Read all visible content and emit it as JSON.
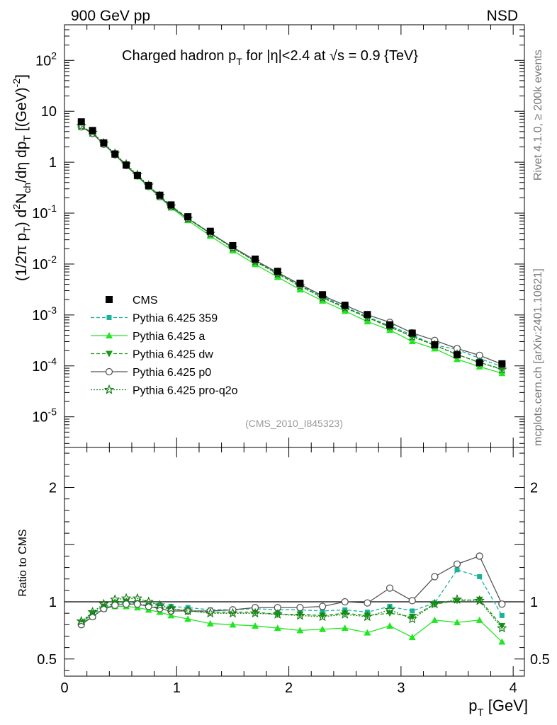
{
  "header": {
    "left": "900 GeV pp",
    "right": "NSD"
  },
  "side": {
    "rivet": "Rivet 4.1.0, ≥ 200k events",
    "mcplots": "mcplots.cern.ch [arXiv:2401.10621]"
  },
  "title": {
    "main": "Charged hadron p",
    "sub": "T",
    "rest": " for |η|<2.4 at √s = 0.9 {TeV}"
  },
  "ylabel": {
    "a": "(1/2π p",
    "a_sub": "T",
    "b": ") d",
    "b_sup": "2",
    "c": "N",
    "c_sub": "ch",
    "d": "/dη  dp",
    "d_sub": "T",
    "e": " [(GeV)",
    "e_sup": "-2",
    "f": "]"
  },
  "ratio_label": "Ratio to CMS",
  "xlabel": {
    "main": "p",
    "sub": "T",
    "rest": " [GeV]"
  },
  "analysis_tag": "(CMS_2010_I845323)",
  "colors": {
    "cms": "#000000",
    "p359": "#1ab39a",
    "pa": "#22e622",
    "pdw": "#189c18",
    "pp0": "#555555",
    "pq2o": "#137d13"
  },
  "chart_data": [
    {
      "type": "scatter",
      "scale": "log",
      "xlim": [
        0,
        4.1
      ],
      "ylim": [
        2.5e-06,
        500
      ],
      "y_ticks": [
        {
          "v": 1e-05,
          "b": "10",
          "e": "-5"
        },
        {
          "v": 0.0001,
          "b": "10",
          "e": "-4"
        },
        {
          "v": 0.001,
          "b": "10",
          "e": "-3"
        },
        {
          "v": 0.01,
          "b": "10",
          "e": "-2"
        },
        {
          "v": 0.1,
          "b": "10",
          "e": "-1"
        },
        {
          "v": 1,
          "b": "1",
          "e": ""
        },
        {
          "v": 10,
          "b": "10",
          "e": ""
        },
        {
          "v": 100,
          "b": "10",
          "e": "2"
        }
      ],
      "x": [
        0.15,
        0.25,
        0.35,
        0.45,
        0.55,
        0.65,
        0.75,
        0.85,
        0.95,
        1.1,
        1.3,
        1.5,
        1.7,
        1.9,
        2.1,
        2.3,
        2.5,
        2.7,
        2.9,
        3.1,
        3.3,
        3.5,
        3.7,
        3.9
      ],
      "cms": [
        6.2,
        4.2,
        2.4,
        1.45,
        0.88,
        0.55,
        0.35,
        0.225,
        0.145,
        0.085,
        0.044,
        0.023,
        0.0125,
        0.0072,
        0.0042,
        0.0025,
        0.00155,
        0.00102,
        0.00064,
        0.00044,
        0.00026,
        0.000165,
        0.000115,
        0.00011
      ],
      "series": [
        {
          "name": "Pythia 6.425 359",
          "key": "p359",
          "ratio": [
            0.82,
            0.89,
            0.95,
            0.98,
            0.99,
            0.98,
            0.97,
            0.97,
            0.96,
            0.95,
            0.93,
            0.93,
            0.94,
            0.93,
            0.93,
            0.92,
            0.93,
            0.91,
            0.96,
            0.92,
            0.99,
            1.28,
            1.22,
            0.88
          ]
        },
        {
          "name": "Pythia 6.425 a",
          "key": "pa",
          "ratio": [
            0.81,
            0.87,
            0.94,
            0.96,
            0.96,
            0.95,
            0.93,
            0.91,
            0.88,
            0.85,
            0.81,
            0.8,
            0.79,
            0.77,
            0.75,
            0.76,
            0.77,
            0.73,
            0.79,
            0.69,
            0.84,
            0.82,
            0.84,
            0.65
          ]
        },
        {
          "name": "Pythia 6.425 dw",
          "key": "pdw",
          "ratio": [
            0.82,
            0.9,
            0.96,
            0.99,
            1.0,
            0.99,
            0.96,
            0.95,
            0.94,
            0.92,
            0.91,
            0.91,
            0.91,
            0.89,
            0.89,
            0.88,
            0.9,
            0.88,
            0.9,
            0.87,
            0.98,
            1.01,
            1.02,
            0.79
          ]
        },
        {
          "name": "Pythia 6.425 p0",
          "key": "pp0",
          "ratio": [
            0.8,
            0.87,
            0.94,
            0.97,
            0.98,
            0.98,
            0.96,
            0.94,
            0.92,
            0.92,
            0.92,
            0.93,
            0.95,
            0.95,
            0.95,
            0.96,
            1.0,
            0.99,
            1.12,
            1.01,
            1.22,
            1.33,
            1.4,
            0.98
          ]
        },
        {
          "name": "Pythia 6.425 pro-q2o",
          "key": "pq2o",
          "ratio": [
            0.83,
            0.91,
            0.98,
            1.02,
            1.03,
            1.03,
            1.0,
            0.97,
            0.94,
            0.92,
            0.9,
            0.9,
            0.9,
            0.89,
            0.88,
            0.87,
            0.89,
            0.87,
            0.93,
            0.85,
            0.98,
            1.02,
            1.01,
            0.77
          ]
        }
      ],
      "legend": [
        "CMS",
        "Pythia 6.425 359",
        "Pythia 6.425 a",
        "Pythia 6.425 dw",
        "Pythia 6.425 p0",
        "Pythia 6.425 pro-q2o"
      ],
      "legend_position": "bottom-left"
    },
    {
      "type": "line",
      "title": "Ratio to CMS",
      "xlabel": "pT [GeV]",
      "xlim": [
        0,
        4.1
      ],
      "ylim": [
        0.35,
        2.35
      ],
      "y_ticks": [
        {
          "v": 0.5,
          "l": "0.5"
        },
        {
          "v": 1,
          "l": "1"
        },
        {
          "v": 2,
          "l": "2"
        }
      ],
      "x_ticks": [
        {
          "v": 0,
          "l": "0"
        },
        {
          "v": 1,
          "l": "1"
        },
        {
          "v": 2,
          "l": "2"
        },
        {
          "v": 3,
          "l": "3"
        },
        {
          "v": 4,
          "l": "4"
        }
      ]
    }
  ]
}
